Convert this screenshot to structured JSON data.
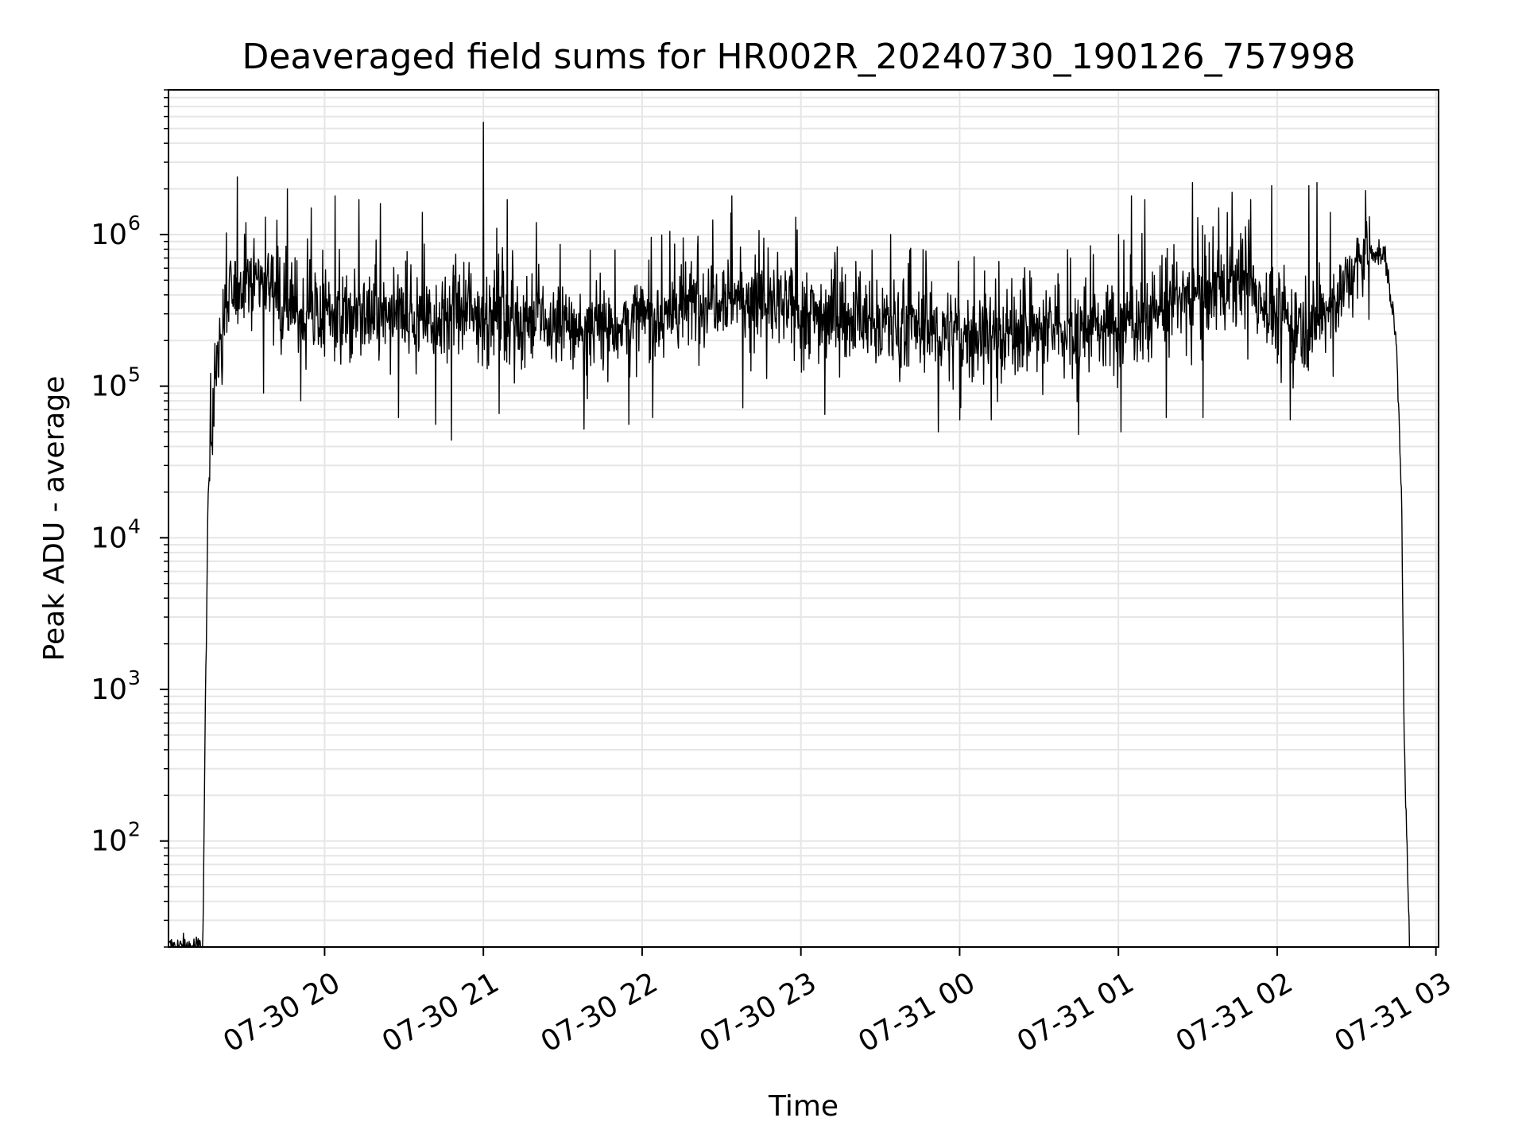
{
  "chart_data": {
    "type": "line",
    "title": "Deaveraged field sums for HR002R_20240730_190126_757998",
    "xlabel": "Time",
    "ylabel": "Peak ADU - average",
    "x_start": "2024-07-30 19:01:26",
    "x_end": "2024-07-31 02:50:00",
    "xlim": [
      "2024-07-30 19:01:00",
      "2024-07-31 03:01:00"
    ],
    "ylim": [
      20,
      9000000
    ],
    "yscale": "log",
    "grid": true,
    "line_color": "#000000",
    "grid_color": "#e6e6e6",
    "x_ticks": [
      {
        "label": "07-30 20",
        "hour": 20
      },
      {
        "label": "07-30 21",
        "hour": 21
      },
      {
        "label": "07-30 22",
        "hour": 22
      },
      {
        "label": "07-30 23",
        "hour": 23
      },
      {
        "label": "07-31 00",
        "hour": 24
      },
      {
        "label": "07-31 01",
        "hour": 25
      },
      {
        "label": "07-31 02",
        "hour": 26
      },
      {
        "label": "07-31 03",
        "hour": 27
      }
    ],
    "y_ticks": [
      {
        "base": "10",
        "exp": "2",
        "value": 100
      },
      {
        "base": "10",
        "exp": "3",
        "value": 1000
      },
      {
        "base": "10",
        "exp": "4",
        "value": 10000
      },
      {
        "base": "10",
        "exp": "5",
        "value": 100000
      },
      {
        "base": "10",
        "exp": "6",
        "value": 1000000
      }
    ],
    "envelope": [
      {
        "t": "19:14",
        "v": 20
      },
      {
        "t": "19:15",
        "v": 900
      },
      {
        "t": "19:16",
        "v": 18000
      },
      {
        "t": "19:18",
        "v": 90000
      },
      {
        "t": "19:21",
        "v": 250000
      },
      {
        "t": "19:25",
        "v": 400000
      },
      {
        "t": "19:30",
        "v": 550000
      },
      {
        "t": "19:40",
        "v": 500000
      },
      {
        "t": "19:50",
        "v": 300000
      },
      {
        "t": "20:30",
        "v": 280000
      },
      {
        "t": "21:00",
        "v": 300000
      },
      {
        "t": "21:40",
        "v": 230000
      },
      {
        "t": "22:10",
        "v": 300000
      },
      {
        "t": "22:30",
        "v": 420000
      },
      {
        "t": "22:50",
        "v": 330000
      },
      {
        "t": "23:30",
        "v": 260000
      },
      {
        "t": "00:00",
        "v": 220000
      },
      {
        "t": "00:30",
        "v": 230000
      },
      {
        "t": "01:00",
        "v": 250000
      },
      {
        "t": "01:30",
        "v": 420000
      },
      {
        "t": "01:50",
        "v": 460000
      },
      {
        "t": "02:00",
        "v": 280000
      },
      {
        "t": "02:15",
        "v": 260000
      },
      {
        "t": "02:25",
        "v": 450000
      },
      {
        "t": "02:35",
        "v": 800000
      },
      {
        "t": "02:41",
        "v": 700000
      },
      {
        "t": "02:45",
        "v": 200000
      },
      {
        "t": "02:47",
        "v": 20000
      },
      {
        "t": "02:48",
        "v": 500
      },
      {
        "t": "02:49",
        "v": 100
      },
      {
        "t": "02:50",
        "v": 20
      }
    ],
    "spikes": [
      {
        "t": "19:27",
        "v": 2400000
      },
      {
        "t": "19:46",
        "v": 2000000
      },
      {
        "t": "19:55",
        "v": 1500000
      },
      {
        "t": "20:04",
        "v": 1800000
      },
      {
        "t": "20:13",
        "v": 1700000
      },
      {
        "t": "20:21",
        "v": 1600000
      },
      {
        "t": "20:28",
        "v": 1800000
      },
      {
        "t": "20:37",
        "v": 1400000
      },
      {
        "t": "21:00",
        "v": 5500000
      },
      {
        "t": "21:05",
        "v": 1100000
      },
      {
        "t": "21:09",
        "v": 1700000
      },
      {
        "t": "21:20",
        "v": 1200000
      },
      {
        "t": "21:55",
        "v": 1000000
      },
      {
        "t": "22:34",
        "v": 1800000
      },
      {
        "t": "22:58",
        "v": 1300000
      },
      {
        "t": "23:34",
        "v": 1000000
      },
      {
        "t": "01:00",
        "v": 1000000
      },
      {
        "t": "01:05",
        "v": 1800000
      },
      {
        "t": "01:10",
        "v": 1700000
      },
      {
        "t": "01:28",
        "v": 2200000
      },
      {
        "t": "01:32",
        "v": 1800000
      },
      {
        "t": "01:38",
        "v": 1500000
      },
      {
        "t": "01:43",
        "v": 1900000
      },
      {
        "t": "01:50",
        "v": 1700000
      },
      {
        "t": "01:58",
        "v": 2100000
      },
      {
        "t": "02:12",
        "v": 2100000
      },
      {
        "t": "02:15",
        "v": 2200000
      },
      {
        "t": "02:20",
        "v": 1400000
      }
    ],
    "dips": [
      {
        "t": "19:37",
        "v": 90000
      },
      {
        "t": "19:51",
        "v": 80000
      },
      {
        "t": "20:28",
        "v": 62000
      },
      {
        "t": "20:42",
        "v": 56000
      },
      {
        "t": "20:48",
        "v": 44000
      },
      {
        "t": "21:06",
        "v": 66000
      },
      {
        "t": "21:38",
        "v": 52000
      },
      {
        "t": "21:55",
        "v": 56000
      },
      {
        "t": "22:04",
        "v": 62000
      },
      {
        "t": "22:38",
        "v": 72000
      },
      {
        "t": "23:09",
        "v": 65000
      },
      {
        "t": "23:52",
        "v": 50000
      },
      {
        "t": "00:00",
        "v": 60000
      },
      {
        "t": "00:12",
        "v": 60000
      },
      {
        "t": "00:45",
        "v": 48000
      },
      {
        "t": "01:01",
        "v": 50000
      },
      {
        "t": "01:18",
        "v": 62000
      },
      {
        "t": "01:32",
        "v": 62000
      },
      {
        "t": "02:05",
        "v": 60000
      }
    ]
  }
}
